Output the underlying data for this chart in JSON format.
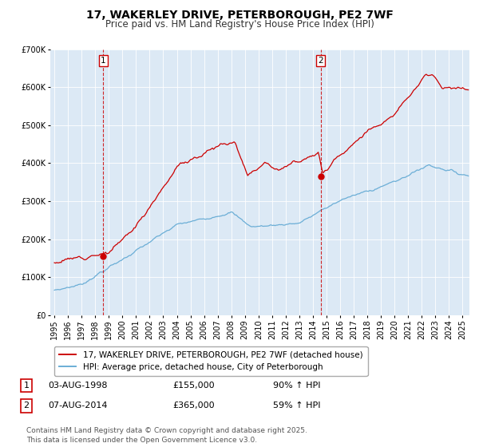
{
  "title": "17, WAKERLEY DRIVE, PETERBOROUGH, PE2 7WF",
  "subtitle": "Price paid vs. HM Land Registry's House Price Index (HPI)",
  "legend_line1": "17, WAKERLEY DRIVE, PETERBOROUGH, PE2 7WF (detached house)",
  "legend_line2": "HPI: Average price, detached house, City of Peterborough",
  "footnote": "Contains HM Land Registry data © Crown copyright and database right 2025.\nThis data is licensed under the Open Government Licence v3.0.",
  "sale1_label": "1",
  "sale1_date": "03-AUG-1998",
  "sale1_price": "£155,000",
  "sale1_hpi": "90% ↑ HPI",
  "sale2_label": "2",
  "sale2_date": "07-AUG-2014",
  "sale2_price": "£365,000",
  "sale2_hpi": "59% ↑ HPI",
  "sale1_x": 1998.58,
  "sale1_y": 155000,
  "sale2_x": 2014.58,
  "sale2_y": 365000,
  "vline1_x": 1998.58,
  "vline2_x": 2014.58,
  "red_color": "#cc0000",
  "blue_color": "#6baed6",
  "plot_bg": "#dce9f5",
  "ylim": [
    0,
    700000
  ],
  "xlim": [
    1994.7,
    2025.5
  ],
  "yticks": [
    0,
    100000,
    200000,
    300000,
    400000,
    500000,
    600000,
    700000
  ],
  "ytick_labels": [
    "£0",
    "£100K",
    "£200K",
    "£300K",
    "£400K",
    "£500K",
    "£600K",
    "£700K"
  ],
  "xticks": [
    1995,
    1996,
    1997,
    1998,
    1999,
    2000,
    2001,
    2002,
    2003,
    2004,
    2005,
    2006,
    2007,
    2008,
    2009,
    2010,
    2011,
    2012,
    2013,
    2014,
    2015,
    2016,
    2017,
    2018,
    2019,
    2020,
    2021,
    2022,
    2023,
    2024,
    2025
  ],
  "title_fontsize": 10,
  "subtitle_fontsize": 8.5,
  "tick_fontsize": 7,
  "legend_fontsize": 7.5,
  "table_fontsize": 8,
  "footnote_fontsize": 6.5
}
